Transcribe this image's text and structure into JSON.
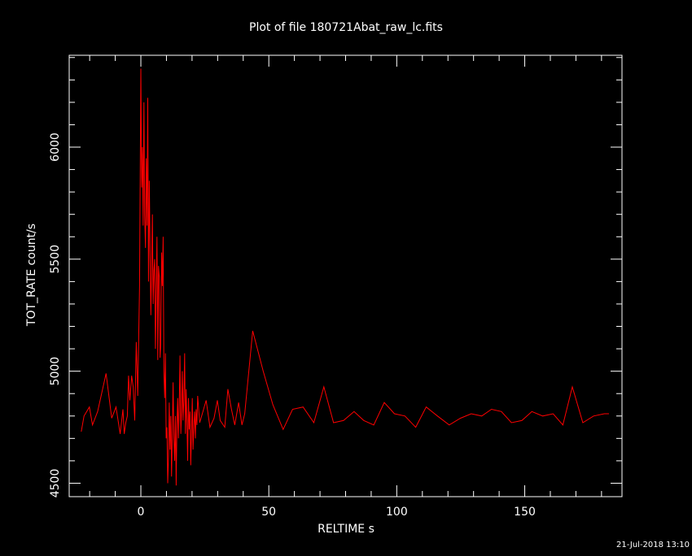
{
  "chart_data": {
    "type": "line",
    "title": "Plot of file 180721Abat_raw_lc.fits",
    "xlabel": "RELTIME  s",
    "ylabel": "TOT_RATE  count/s",
    "timestamp": "21-Jul-2018 13:10",
    "xlim": [
      -28,
      188
    ],
    "ylim": [
      4440,
      6410
    ],
    "x_major_ticks": [
      0,
      50,
      100,
      150
    ],
    "x_minor_step": 10,
    "y_major_ticks": [
      4500,
      5000,
      5500,
      6000
    ],
    "y_minor_step": 100,
    "grid": false,
    "series_color": "#ff0000",
    "series": [
      {
        "x": [
          -23.3,
          -22.2,
          -20.1,
          -18.9,
          -16.9,
          -13.6,
          -11.4,
          -9.7,
          -8.1,
          -7.0,
          -6.5,
          -5.9,
          -5.3,
          -4.8,
          -4.3,
          -3.6,
          -3.0,
          -2.4,
          -1.8,
          -1.2,
          -0.5,
          0.0,
          0.3,
          0.6,
          0.9,
          1.2,
          1.5,
          1.8,
          2.1,
          2.4,
          2.7,
          3.0,
          3.3,
          3.6,
          3.9,
          4.2,
          4.5,
          4.8,
          5.1,
          5.4,
          5.7,
          6.0,
          6.3,
          6.6,
          6.9,
          7.2,
          7.5,
          7.8,
          8.1,
          8.4,
          8.7,
          9.0,
          9.3,
          9.6,
          9.9,
          10.2,
          10.5,
          10.8,
          11.1,
          11.4,
          11.7,
          12.0,
          12.3,
          12.6,
          12.9,
          13.2,
          13.5,
          13.8,
          14.1,
          14.4,
          14.7,
          15.0,
          15.3,
          15.6,
          15.9,
          16.2,
          16.5,
          16.8,
          17.1,
          17.4,
          17.7,
          18.0,
          18.3,
          18.6,
          18.9,
          19.2,
          19.5,
          19.8,
          20.1,
          20.4,
          20.7,
          21.0,
          21.3,
          21.6,
          21.9,
          22.2,
          23.0,
          24.0,
          25.5,
          27.0,
          28.6,
          29.9,
          31.0,
          32.8,
          34.0,
          35.4,
          36.7,
          38.2,
          39.5,
          40.6,
          43.7,
          47.8,
          51.6,
          55.6,
          59.3,
          63.4,
          67.6,
          71.5,
          75.3,
          79.2,
          83.3,
          87.1,
          91.0,
          95.1,
          99.1,
          103.2,
          107.4,
          111.5,
          115.9,
          120.5,
          124.9,
          129.1,
          133.2,
          137.0,
          140.9,
          144.8,
          148.9,
          152.8,
          157.0,
          161.1,
          164.9,
          168.6,
          172.7,
          176.9,
          181.1,
          182.9
        ],
        "y": [
          4730,
          4800,
          4840,
          4760,
          4820,
          4990,
          4790,
          4840,
          4720,
          4830,
          4720,
          4770,
          4800,
          4980,
          4870,
          4980,
          4930,
          4780,
          5130,
          4890,
          5380,
          6350,
          5820,
          6000,
          5650,
          6200,
          5700,
          5550,
          5950,
          5650,
          6220,
          5400,
          5850,
          5550,
          5250,
          5450,
          5700,
          5300,
          5450,
          5500,
          5100,
          5350,
          5600,
          5050,
          5470,
          5420,
          5060,
          5120,
          5530,
          5380,
          5600,
          5000,
          4880,
          5080,
          4700,
          4750,
          4500,
          4620,
          4860,
          4650,
          4800,
          4530,
          4730,
          4950,
          4700,
          4600,
          4800,
          4490,
          4760,
          4880,
          4700,
          4850,
          5070,
          4720,
          4820,
          5000,
          4780,
          4870,
          5080,
          4720,
          4920,
          4780,
          4600,
          4880,
          4740,
          4820,
          4580,
          4740,
          4880,
          4650,
          4760,
          4820,
          4700,
          4830,
          4760,
          4890,
          4770,
          4810,
          4870,
          4750,
          4790,
          4870,
          4780,
          4750,
          4920,
          4830,
          4760,
          4860,
          4760,
          4810,
          5180,
          5000,
          4850,
          4740,
          4830,
          4840,
          4770,
          4930,
          4770,
          4780,
          4820,
          4780,
          4760,
          4860,
          4810,
          4800,
          4750,
          4840,
          4800,
          4760,
          4790,
          4810,
          4800,
          4830,
          4820,
          4770,
          4780,
          4820,
          4800,
          4810,
          4760,
          4930,
          4770,
          4800,
          4810,
          4810
        ]
      }
    ]
  }
}
